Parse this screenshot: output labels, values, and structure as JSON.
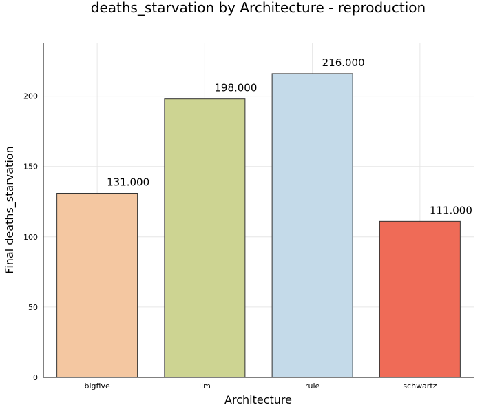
{
  "chart_data": {
    "type": "bar",
    "title": "deaths_starvation by Architecture - reproduction",
    "xlabel": "Architecture",
    "ylabel": "Final deaths_starvation",
    "categories": [
      "bigfive",
      "llm",
      "rule",
      "schwartz"
    ],
    "values": [
      131,
      198,
      216,
      111
    ],
    "value_labels": [
      "131.000",
      "198.000",
      "216.000",
      "111.000"
    ],
    "colors": [
      "#f4c7a1",
      "#cdd492",
      "#c4dae9",
      "#ef6b57"
    ],
    "ylim": [
      0,
      238
    ],
    "yticks": [
      0,
      50,
      100,
      150,
      200
    ],
    "grid": true,
    "legend": "none"
  }
}
